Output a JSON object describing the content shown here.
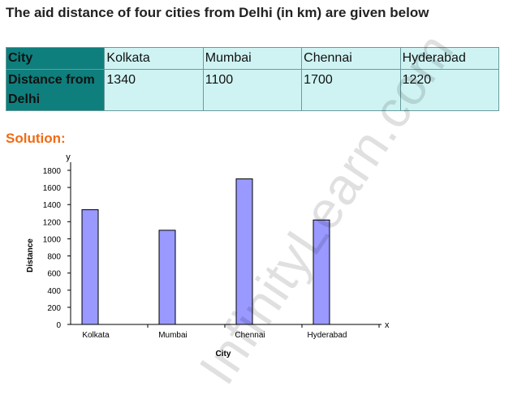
{
  "heading": "The aid distance of four cities from Delhi (in km) are given below",
  "table": {
    "row1": [
      "City",
      "Kolkata",
      "Mumbai",
      "Chennai",
      "Hyderabad"
    ],
    "row2": [
      "Distance from Delhi",
      "1340",
      "1100",
      "1700",
      "1220"
    ]
  },
  "solution_label": "Solution:",
  "watermark": "InfinityLearn.com",
  "colors": {
    "header_cell": "#0e7f7d",
    "data_cell": "#cff3f3",
    "bar_fill": "#9999ff",
    "solution": "#f26a13"
  },
  "chart_data": {
    "type": "bar",
    "categories": [
      "Kolkata",
      "Mumbai",
      "Chennai",
      "Hyderabad"
    ],
    "values": [
      1340,
      1100,
      1700,
      1220
    ],
    "xlabel": "City",
    "ylabel": "Distance",
    "x_axis_symbol": "x",
    "y_axis_symbol": "y",
    "ylim": [
      0,
      1800
    ],
    "yticks": [
      0,
      200,
      400,
      600,
      800,
      1000,
      1200,
      1400,
      1600,
      1800
    ],
    "ytick_labels": [
      "0",
      "200",
      "400",
      "600",
      "800",
      "1000",
      "1200",
      "1400",
      "1600",
      "1800"
    ],
    "grid": false,
    "legend": "none"
  }
}
